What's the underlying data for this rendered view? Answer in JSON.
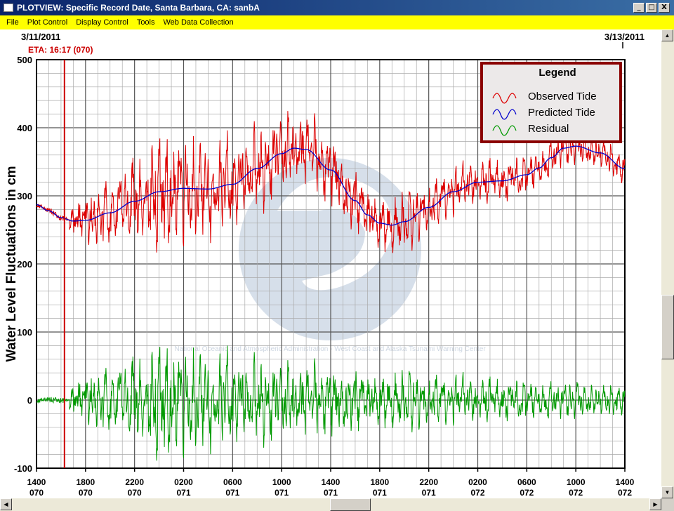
{
  "window": {
    "title": "PLOTVIEW: Specific Record Date, Santa Barbara, CA: sanbA",
    "buttons": [
      "_",
      "□",
      "X"
    ]
  },
  "menu": {
    "items": [
      "File",
      "Plot Control",
      "Display Control",
      "Tools",
      "Web Data Collection"
    ]
  },
  "plot": {
    "date_left": "3/11/2011",
    "date_right": "3/13/2011",
    "eta_label": "ETA: 16:17 (070)",
    "eta_color": "#cc0000",
    "watermark": "National Oceanic and Atmospheric Administration - West Coast and Alaska Tsunami Warning Center"
  },
  "icons": {
    "scroll_up": "triangle-up-icon",
    "scroll_down": "triangle-down-icon",
    "scroll_left": "triangle-left-icon",
    "scroll_right": "triangle-right-icon",
    "app": "window-app-icon"
  },
  "chart_data": {
    "type": "line",
    "ylabel": "Water Level Fluctuations in cm",
    "ylim": [
      -100,
      500
    ],
    "yticks": [
      "500",
      "400",
      "300",
      "200",
      "100",
      "0",
      "-100"
    ],
    "xlim_hours": [
      0,
      48
    ],
    "eta_hour": 2.28,
    "xtick_times": [
      "1400",
      "1800",
      "2200",
      "0200",
      "0600",
      "1000",
      "1400",
      "1800",
      "2200",
      "0200",
      "0600",
      "1000",
      "1400"
    ],
    "xtick_days": [
      "070",
      "070",
      "070",
      "071",
      "071",
      "071",
      "071",
      "071",
      "071",
      "072",
      "072",
      "072",
      "072"
    ],
    "legend": {
      "title": "Legend",
      "placement": "top-right",
      "entries": [
        {
          "name": "Observed Tide",
          "color": "#dd0000"
        },
        {
          "name": "Predicted Tide",
          "color": "#0000cc"
        },
        {
          "name": "Residual",
          "color": "#009900"
        }
      ]
    },
    "predicted_tide": {
      "x": [
        0,
        1,
        2,
        3,
        4,
        6,
        8,
        10,
        12,
        14,
        16,
        18,
        20,
        21,
        22,
        24,
        26,
        27,
        28,
        29,
        30,
        32,
        34,
        36,
        38,
        40,
        41,
        42,
        43,
        44,
        46,
        48
      ],
      "y": [
        287,
        278,
        268,
        263,
        264,
        275,
        292,
        306,
        311,
        310,
        317,
        340,
        362,
        370,
        368,
        338,
        293,
        272,
        260,
        257,
        262,
        283,
        306,
        320,
        322,
        331,
        341,
        356,
        370,
        373,
        363,
        340
      ]
    },
    "residual_amplitude": {
      "x": [
        0,
        2.3,
        3,
        6,
        8,
        10,
        12,
        18,
        24,
        30,
        36,
        42,
        48
      ],
      "y": [
        4,
        4,
        25,
        50,
        65,
        75,
        70,
        55,
        45,
        38,
        30,
        25,
        22
      ]
    }
  }
}
